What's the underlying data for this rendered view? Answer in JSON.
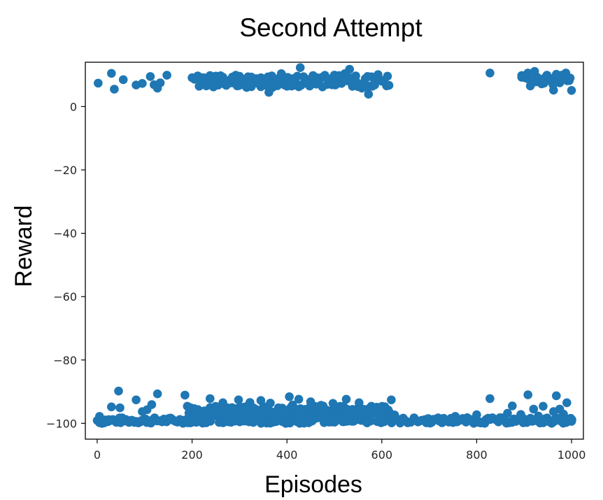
{
  "chart_data": {
    "type": "scatter",
    "title": "Second Attempt",
    "xlabel": "Episodes",
    "ylabel": "Reward",
    "xlim": [
      -25,
      1025
    ],
    "ylim": [
      -105,
      14
    ],
    "xticks": [
      0,
      200,
      400,
      600,
      800,
      1000
    ],
    "yticks": [
      0,
      -20,
      -40,
      -60,
      -80,
      -100
    ],
    "xtick_labels": [
      "0",
      "200",
      "400",
      "600",
      "800",
      "1000"
    ],
    "ytick_labels": [
      "0",
      "−20",
      "−40",
      "−60",
      "−80",
      "−100"
    ],
    "grid": false,
    "marker_color": "#1f77b4",
    "series": [
      {
        "points": [
          [
            2,
            7.4
          ],
          [
            30,
            10.5
          ],
          [
            36,
            5.5
          ],
          [
            55,
            8.5
          ],
          [
            82,
            6.8
          ],
          [
            95,
            7.3
          ],
          [
            112,
            9.5
          ],
          [
            120,
            6.9
          ],
          [
            127,
            5.8
          ],
          [
            133,
            7.5
          ],
          [
            147,
            9.9
          ],
          [
            205,
            8.9
          ],
          [
            212,
            9.7
          ],
          [
            218,
            6.9
          ],
          [
            225,
            8.5
          ],
          [
            232,
            7.6
          ],
          [
            238,
            9.8
          ],
          [
            245,
            6.2
          ],
          [
            252,
            8.9
          ],
          [
            258,
            7.1
          ],
          [
            265,
            9.3
          ],
          [
            272,
            6.7
          ],
          [
            278,
            8.2
          ],
          [
            285,
            7.5
          ],
          [
            292,
            9.9
          ],
          [
            298,
            6.6
          ],
          [
            305,
            8.7
          ],
          [
            312,
            7.2
          ],
          [
            318,
            9.4
          ],
          [
            325,
            6.3
          ],
          [
            332,
            8.6
          ],
          [
            338,
            7.4
          ],
          [
            345,
            9.1
          ],
          [
            352,
            6.9
          ],
          [
            358,
            8.3
          ],
          [
            362,
            4.5
          ],
          [
            368,
            9.7
          ],
          [
            375,
            7.2
          ],
          [
            382,
            8.8
          ],
          [
            388,
            10.4
          ],
          [
            395,
            6.8
          ],
          [
            402,
            9.2
          ],
          [
            408,
            7.5
          ],
          [
            415,
            8.9
          ],
          [
            422,
            9.6
          ],
          [
            428,
            12.3
          ],
          [
            435,
            7.3
          ],
          [
            442,
            8.6
          ],
          [
            448,
            6.5
          ],
          [
            455,
            9.8
          ],
          [
            462,
            7.1
          ],
          [
            468,
            8.4
          ],
          [
            475,
            6.2
          ],
          [
            482,
            9.3
          ],
          [
            488,
            7.6
          ],
          [
            495,
            8.9
          ],
          [
            502,
            6.8
          ],
          [
            508,
            9.5
          ],
          [
            515,
            7.4
          ],
          [
            522,
            10.4
          ],
          [
            528,
            8.1
          ],
          [
            532,
            11.8
          ],
          [
            538,
            6.4
          ],
          [
            545,
            9.7
          ],
          [
            552,
            7.2
          ],
          [
            558,
            5.8
          ],
          [
            565,
            8.8
          ],
          [
            572,
            3.9
          ],
          [
            578,
            9.4
          ],
          [
            585,
            7.3
          ],
          [
            592,
            10.1
          ],
          [
            600,
            8.2
          ],
          [
            612,
            9.6
          ],
          [
            828,
            10.6
          ],
          [
            895,
            9.8
          ],
          [
            902,
            9.1
          ],
          [
            908,
            10.6
          ],
          [
            915,
            8.6
          ],
          [
            922,
            11.1
          ],
          [
            928,
            9.2
          ],
          [
            935,
            8.3
          ],
          [
            942,
            7.4
          ],
          [
            948,
            9.9
          ],
          [
            955,
            8.8
          ],
          [
            962,
            5.2
          ],
          [
            968,
            10.2
          ],
          [
            975,
            7.5
          ],
          [
            982,
            9.1
          ],
          [
            988,
            10.6
          ],
          [
            995,
            8.2
          ],
          [
            1000,
            5.1
          ],
          [
            0,
            -99.1
          ],
          [
            5,
            -97.8
          ],
          [
            10,
            -100
          ],
          [
            30,
            -94.8
          ],
          [
            45,
            -89.8
          ],
          [
            48,
            -95.1
          ],
          [
            65,
            -99.2
          ],
          [
            82,
            -92.6
          ],
          [
            95,
            -96.3
          ],
          [
            105,
            -95.7
          ],
          [
            115,
            -94.1
          ],
          [
            127,
            -90.7
          ],
          [
            140,
            -98.9
          ],
          [
            185,
            -91.1
          ],
          [
            190,
            -94.6
          ],
          [
            202,
            -96.2
          ],
          [
            215,
            -97.2
          ],
          [
            238,
            -92.2
          ],
          [
            246,
            -95.2
          ],
          [
            265,
            -93.5
          ],
          [
            279,
            -96.6
          ],
          [
            292,
            -95.4
          ],
          [
            298,
            -92.6
          ],
          [
            305,
            -97.7
          ],
          [
            322,
            -93.4
          ],
          [
            335,
            -96.5
          ],
          [
            345,
            -92.8
          ],
          [
            352,
            -95.5
          ],
          [
            365,
            -93.6
          ],
          [
            378,
            -96.8
          ],
          [
            390,
            -95.2
          ],
          [
            405,
            -91.6
          ],
          [
            412,
            -94.2
          ],
          [
            425,
            -92.4
          ],
          [
            438,
            -95.6
          ],
          [
            450,
            -93.2
          ],
          [
            462,
            -96.1
          ],
          [
            472,
            -94.3
          ],
          [
            485,
            -95.9
          ],
          [
            497,
            -93.7
          ],
          [
            510,
            -94.8
          ],
          [
            525,
            -92.4
          ],
          [
            538,
            -95.6
          ],
          [
            552,
            -93.5
          ],
          [
            565,
            -97.5
          ],
          [
            578,
            -94.6
          ],
          [
            590,
            -96.4
          ],
          [
            602,
            -95.3
          ],
          [
            620,
            -92.6
          ],
          [
            755,
            -97.8
          ],
          [
            780,
            -98.6
          ],
          [
            800,
            -97.3
          ],
          [
            815,
            -99.5
          ],
          [
            828,
            -92.2
          ],
          [
            850,
            -98.4
          ],
          [
            865,
            -96.8
          ],
          [
            875,
            -94.5
          ],
          [
            893,
            -97.2
          ],
          [
            908,
            -91.0
          ],
          [
            920,
            -95.5
          ],
          [
            930,
            -97.7
          ],
          [
            940,
            -94.6
          ],
          [
            950,
            -98.7
          ],
          [
            962,
            -96.3
          ],
          [
            968,
            -91.3
          ],
          [
            975,
            -95.5
          ],
          [
            983,
            -97.1
          ],
          [
            990,
            -93.5
          ],
          [
            1000,
            -99.4
          ]
        ]
      }
    ]
  }
}
